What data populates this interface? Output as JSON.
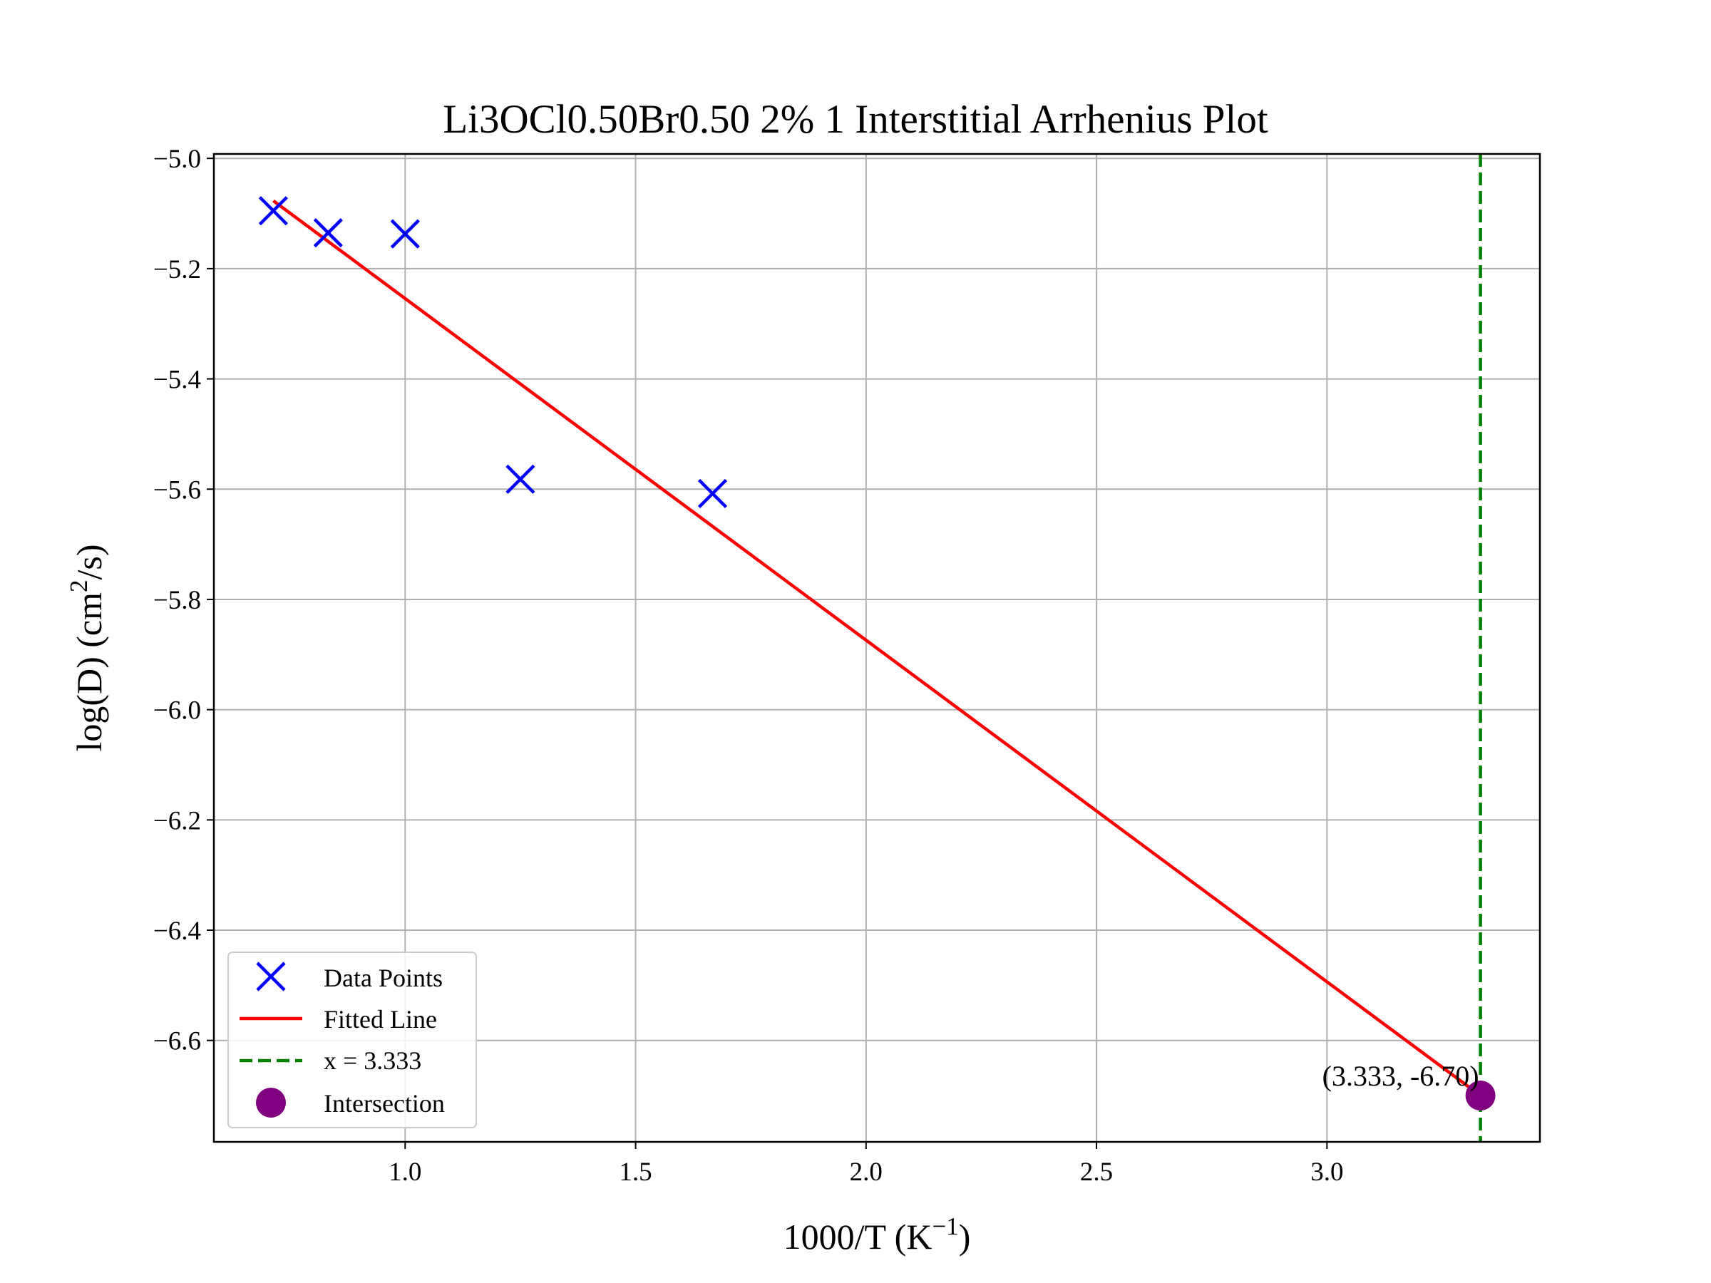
{
  "chart_data": {
    "type": "scatter",
    "title": "Li3OCl0.50Br0.50 2% 1 Interstitial Arrhenius Plot",
    "xlabel": "1000/T (K",
    "xlabel_sup": "−1",
    "xlabel_end": ")",
    "ylabel": "log(D) (cm",
    "ylabel_sup": "2",
    "ylabel_end": "/s)",
    "xlim": [
      0.585,
      3.462
    ],
    "ylim": [
      -6.784,
      -4.992
    ],
    "xticks": [
      1.0,
      1.5,
      2.0,
      2.5,
      3.0
    ],
    "xtick_labels": [
      "1.0",
      "1.5",
      "2.0",
      "2.5",
      "3.0"
    ],
    "yticks": [
      -5.0,
      -5.2,
      -5.4,
      -5.6,
      -5.8,
      -6.0,
      -6.2,
      -6.4,
      -6.6
    ],
    "ytick_labels": [
      "−5.0",
      "−5.2",
      "−5.4",
      "−5.6",
      "−5.8",
      "−6.0",
      "−6.2",
      "−6.4",
      "−6.6"
    ],
    "grid": true,
    "legend_position": "lower-left",
    "series": [
      {
        "name": "Data Points",
        "kind": "scatter",
        "marker": "x",
        "color": "#0000ff",
        "x": [
          0.714,
          0.833,
          1.0,
          1.25,
          1.667
        ],
        "y": [
          -5.095,
          -5.135,
          -5.137,
          -5.582,
          -5.608
        ]
      },
      {
        "name": "Fitted Line",
        "kind": "line",
        "color": "#ff0000",
        "x": [
          0.714,
          3.333
        ],
        "y": [
          -5.077,
          -6.7
        ]
      },
      {
        "name": "x = 3.333",
        "kind": "vline",
        "color": "#008000",
        "x": 3.333
      },
      {
        "name": "Intersection",
        "kind": "point",
        "color": "#800080",
        "x": [
          3.333
        ],
        "y": [
          -6.7
        ]
      }
    ],
    "annotation": {
      "text": "(3.333, -6.70)",
      "x": 3.333,
      "y": -6.7
    }
  }
}
